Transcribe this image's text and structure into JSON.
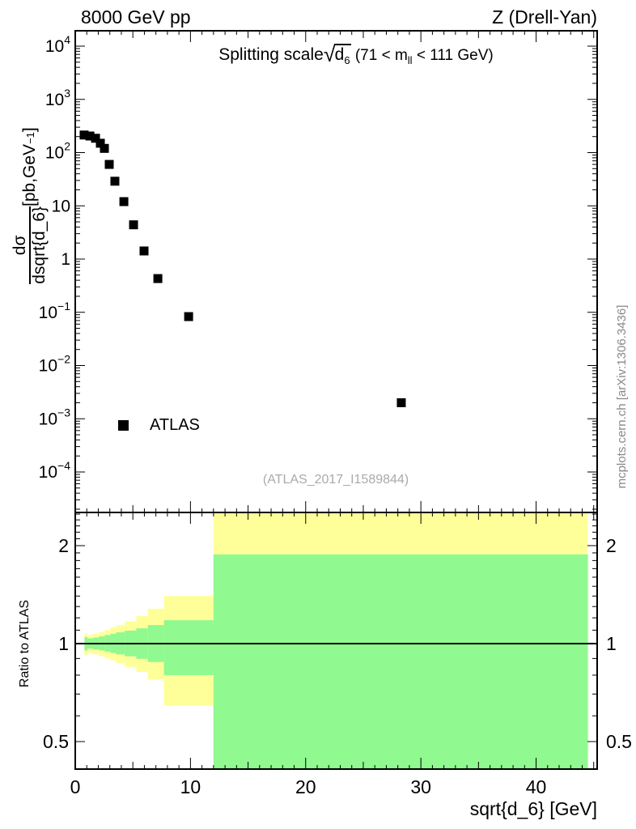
{
  "header": {
    "left": "8000 GeV pp",
    "right": "Z (Drell-Yan)"
  },
  "title": {
    "prefix": "Splitting scale",
    "radical": "√",
    "arg": "d",
    "arg_sub": "6",
    "cond_pre": "(71 < m",
    "cond_sub": "ll",
    "cond_post": " < 111 GeV)"
  },
  "axes": {
    "x": {
      "label": "sqrt{d_6} [GeV]",
      "min": 0,
      "max": 45.3,
      "major_ticks": [
        {
          "label": "0",
          "value": 0
        },
        {
          "label": "10",
          "value": 10
        },
        {
          "label": "20",
          "value": 20
        },
        {
          "label": "30",
          "value": 30
        },
        {
          "label": "40",
          "value": 40
        }
      ]
    },
    "y_main": {
      "label_numerator": "dσ",
      "label_denominator": "dsqrt{d_6}",
      "label_units_pre": " [pb,GeV",
      "label_units_sup": "−1",
      "label_units_post": "]",
      "scale": "log",
      "ticks": [
        {
          "base": "10",
          "exp": "4",
          "value": 10000
        },
        {
          "base": "10",
          "exp": "3",
          "value": 1000
        },
        {
          "base": "10",
          "exp": "2",
          "value": 100
        },
        {
          "base": "10",
          "exp": "",
          "value": 10
        },
        {
          "base": "1",
          "exp": "",
          "value": 1
        },
        {
          "base": "10",
          "exp": "−1",
          "value": 0.1
        },
        {
          "base": "10",
          "exp": "−2",
          "value": 0.01
        },
        {
          "base": "10",
          "exp": "−3",
          "value": 0.001
        },
        {
          "base": "10",
          "exp": "−4",
          "value": 0.0001
        }
      ]
    },
    "y_ratio": {
      "label": "Ratio to ATLAS",
      "scale": "log",
      "min": 0.412,
      "max": 2.53,
      "ticks": [
        {
          "label": "2",
          "value": 2
        },
        {
          "label": "1",
          "value": 1
        },
        {
          "label": "0.5",
          "value": 0.5
        }
      ]
    }
  },
  "legend": {
    "entries": [
      {
        "label": "ATLAS",
        "marker": "black-filled-square"
      }
    ]
  },
  "watermarks": {
    "analysis": "(ATLAS_2017_I1589844)",
    "site": "mcplots.cern.ch [arXiv:1306.3436]"
  },
  "colors": {
    "band_outer": "#ffff99",
    "band_inner": "#90f990",
    "marker": "#000000",
    "frame": "#000000",
    "ref_gray": "#999999"
  },
  "chart_data": {
    "type": "scatter",
    "title": "Splitting scale sqrt(d_6) (71 < m_ll < 111 GeV)",
    "xlabel": "sqrt{d_6} [GeV]",
    "ylabel": "dσ/dsqrt{d_6} [pb,GeV^-1]",
    "x_range": [
      0,
      45.3
    ],
    "y_scale": "log",
    "y_range": [
      1.75e-05,
      19500
    ],
    "legend_position": "inside-left",
    "grid": false,
    "series": [
      {
        "name": "ATLAS",
        "marker": "filled-square",
        "x": [
          0.77,
          1.27,
          1.76,
          2.18,
          2.53,
          2.95,
          3.44,
          4.22,
          5.06,
          5.97,
          7.17,
          9.84,
          28.3
        ],
        "y": [
          214,
          205,
          186,
          150,
          120,
          60,
          29,
          12,
          4.4,
          1.42,
          0.43,
          0.083,
          0.002
        ]
      }
    ],
    "ratio_panel": {
      "label": "Ratio to ATLAS",
      "y_scale": "log",
      "y_range": [
        0.412,
        2.53
      ],
      "reference_line": 1.0,
      "bands": [
        {
          "x0": 0.8,
          "x1": 1.05,
          "outer_lo": 0.92,
          "outer_hi": 1.075,
          "inner_lo": 0.952,
          "inner_hi": 1.048
        },
        {
          "x0": 1.05,
          "x1": 1.55,
          "outer_lo": 0.935,
          "outer_hi": 1.062,
          "inner_lo": 0.965,
          "inner_hi": 1.038
        },
        {
          "x0": 1.55,
          "x1": 2.05,
          "outer_lo": 0.927,
          "outer_hi": 1.072,
          "inner_lo": 0.96,
          "inner_hi": 1.044
        },
        {
          "x0": 2.05,
          "x1": 2.55,
          "outer_lo": 0.915,
          "outer_hi": 1.085,
          "inner_lo": 0.953,
          "inner_hi": 1.052
        },
        {
          "x0": 2.55,
          "x1": 3.05,
          "outer_lo": 0.9,
          "outer_hi": 1.1,
          "inner_lo": 0.945,
          "inner_hi": 1.062
        },
        {
          "x0": 3.05,
          "x1": 3.55,
          "outer_lo": 0.888,
          "outer_hi": 1.122,
          "inner_lo": 0.936,
          "inner_hi": 1.072
        },
        {
          "x0": 3.55,
          "x1": 4.3,
          "outer_lo": 0.872,
          "outer_hi": 1.14,
          "inner_lo": 0.926,
          "inner_hi": 1.083
        },
        {
          "x0": 4.3,
          "x1": 5.3,
          "outer_lo": 0.848,
          "outer_hi": 1.17,
          "inner_lo": 0.914,
          "inner_hi": 1.096
        },
        {
          "x0": 5.3,
          "x1": 6.3,
          "outer_lo": 0.818,
          "outer_hi": 1.215,
          "inner_lo": 0.898,
          "inner_hi": 1.114
        },
        {
          "x0": 6.3,
          "x1": 7.7,
          "outer_lo": 0.775,
          "outer_hi": 1.28,
          "inner_lo": 0.878,
          "inner_hi": 1.14
        },
        {
          "x0": 7.7,
          "x1": 12.0,
          "outer_lo": 0.645,
          "outer_hi": 1.4,
          "inner_lo": 0.8,
          "inner_hi": 1.18
        },
        {
          "x0": 12.0,
          "x1": 44.5,
          "outer_lo": 0.3,
          "outer_hi": 2.6,
          "inner_lo": 0.35,
          "inner_hi": 1.88
        }
      ]
    }
  }
}
